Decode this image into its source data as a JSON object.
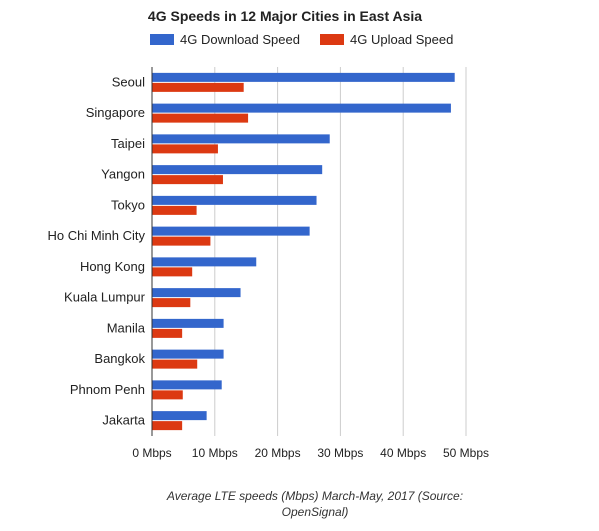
{
  "chart_data": {
    "type": "bar",
    "orientation": "horizontal",
    "title": "4G Speeds in 12 Major Cities in East Asia",
    "categories": [
      "Seoul",
      "Singapore",
      "Taipei",
      "Yangon",
      "Tokyo",
      "Ho Chi Minh City",
      "Hong Kong",
      "Kuala Lumpur",
      "Manila",
      "Bangkok",
      "Phnom Penh",
      "Jakarta"
    ],
    "series": [
      {
        "name": "4G Download Speed",
        "color": "#3366cc",
        "values": [
          48.2,
          47.6,
          28.3,
          27.1,
          26.2,
          25.1,
          16.6,
          14.1,
          11.4,
          11.4,
          11.1,
          8.7
        ]
      },
      {
        "name": "4G Upload Speed",
        "color": "#dc3912",
        "values": [
          14.6,
          15.3,
          10.5,
          11.3,
          7.1,
          9.3,
          6.4,
          6.1,
          4.8,
          7.2,
          4.9,
          4.8
        ]
      }
    ],
    "xlim": [
      0,
      50
    ],
    "xticks": [
      "0 Mbps",
      "10 Mbps",
      "20 Mbps",
      "30 Mbps",
      "40 Mbps",
      "50 Mbps"
    ],
    "grid": true,
    "legend_position": "top",
    "caption": "Average LTE speeds (Mbps) March-May, 2017 (Source: OpenSignal)"
  }
}
